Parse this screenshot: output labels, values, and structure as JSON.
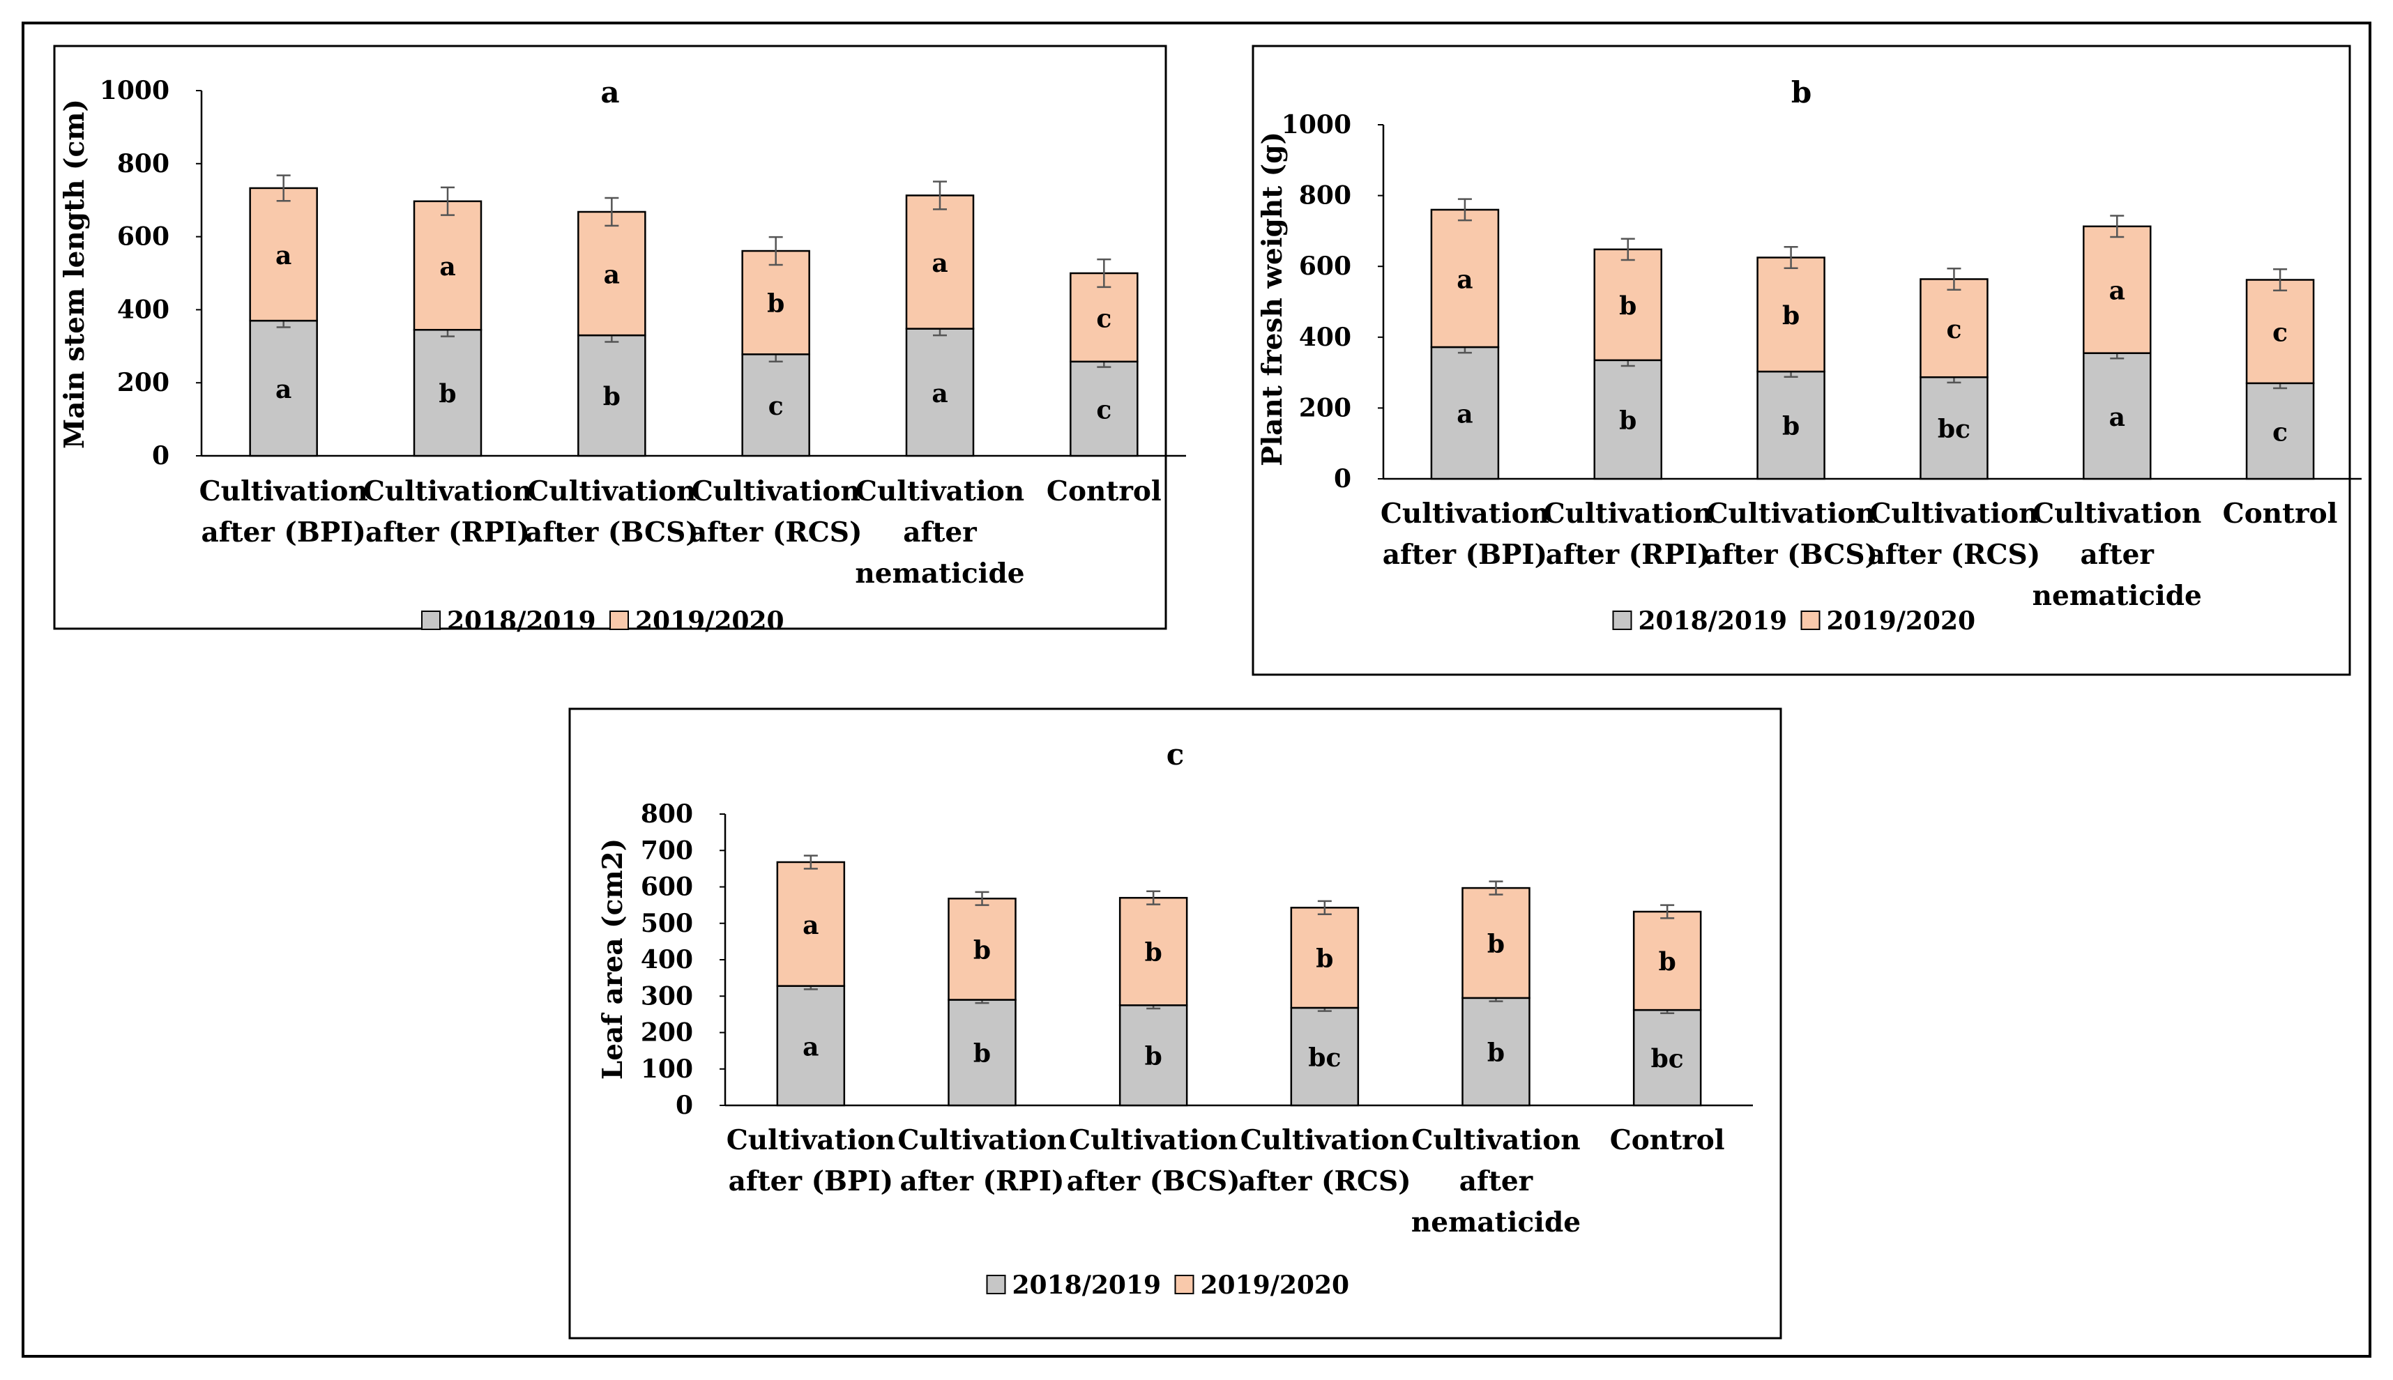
{
  "colors": {
    "season1": "#c6c6c6",
    "season2": "#f9c9ab",
    "outline": "#000000",
    "errorbar": "#555555"
  },
  "chart_data": [
    {
      "type": "bar",
      "stacked": true,
      "title": "a",
      "ylabel": "Main stem length (cm)",
      "xlabel": "",
      "ylim": [
        0,
        1000
      ],
      "yticks": [
        0,
        200,
        400,
        600,
        800,
        1000
      ],
      "grid": false,
      "legend_position": "bottom",
      "categories": [
        [
          "Cultivation",
          "after (BPI)"
        ],
        [
          "Cultivation",
          "after (RPI)"
        ],
        [
          "Cultivation",
          "after (BCS)"
        ],
        [
          "Cultivation",
          "after (RCS)"
        ],
        [
          "Cultivation",
          "after",
          "nematicide"
        ],
        [
          "Control"
        ]
      ],
      "series": [
        {
          "name": "2018/2019",
          "values": [
            370,
            345,
            330,
            278,
            348,
            258
          ],
          "errors": [
            18,
            18,
            18,
            20,
            18,
            15
          ],
          "letters": [
            "a",
            "b",
            "b",
            "c",
            "a",
            "c"
          ]
        },
        {
          "name": "2019/2020",
          "values": [
            363,
            352,
            338,
            283,
            365,
            242
          ],
          "errors": [
            35,
            38,
            38,
            38,
            38,
            38
          ],
          "letters": [
            "a",
            "a",
            "a",
            "b",
            "a",
            "c"
          ]
        }
      ]
    },
    {
      "type": "bar",
      "stacked": true,
      "title": "b",
      "ylabel": "Plant fresh weight (g)",
      "xlabel": "",
      "ylim": [
        0,
        1000
      ],
      "yticks": [
        0,
        200,
        400,
        600,
        800,
        1000
      ],
      "grid": false,
      "legend_position": "bottom",
      "categories": [
        [
          "Cultivation",
          "after (BPI)"
        ],
        [
          "Cultivation",
          "after (RPI)"
        ],
        [
          "Cultivation",
          "after (BCS)"
        ],
        [
          "Cultivation",
          "after (RCS)"
        ],
        [
          "Cultivation",
          "after",
          "nematicide"
        ],
        [
          "Control"
        ]
      ],
      "series": [
        {
          "name": "2018/2019",
          "values": [
            372,
            335,
            303,
            287,
            355,
            270
          ],
          "errors": [
            16,
            16,
            15,
            15,
            15,
            14
          ],
          "letters": [
            "a",
            "b",
            "b",
            "bc",
            "a",
            "c"
          ]
        },
        {
          "name": "2019/2020",
          "values": [
            388,
            313,
            322,
            277,
            358,
            292
          ],
          "errors": [
            30,
            30,
            30,
            30,
            30,
            30
          ],
          "letters": [
            "a",
            "b",
            "b",
            "c",
            "a",
            "c"
          ]
        }
      ]
    },
    {
      "type": "bar",
      "stacked": true,
      "title": "c",
      "ylabel": "Leaf area (cm2)",
      "xlabel": "",
      "ylim": [
        0,
        800
      ],
      "yticks": [
        0,
        100,
        200,
        300,
        400,
        500,
        600,
        700,
        800
      ],
      "grid": false,
      "legend_position": "bottom",
      "categories": [
        [
          "Cultivation",
          "after (BPI)"
        ],
        [
          "Cultivation",
          "after (RPI)"
        ],
        [
          "Cultivation",
          "after (BCS)"
        ],
        [
          "Cultivation",
          "after (RCS)"
        ],
        [
          "Cultivation",
          "after",
          "nematicide"
        ],
        [
          "Control"
        ]
      ],
      "series": [
        {
          "name": "2018/2019",
          "values": [
            328,
            290,
            275,
            268,
            295,
            262
          ],
          "errors": [
            9,
            9,
            9,
            9,
            9,
            9
          ],
          "letters": [
            "a",
            "b",
            "b",
            "bc",
            "b",
            "bc"
          ]
        },
        {
          "name": "2019/2020",
          "values": [
            340,
            278,
            295,
            275,
            302,
            270
          ],
          "errors": [
            18,
            18,
            18,
            18,
            18,
            18
          ],
          "letters": [
            "a",
            "b",
            "b",
            "b",
            "b",
            "b"
          ]
        }
      ]
    }
  ]
}
